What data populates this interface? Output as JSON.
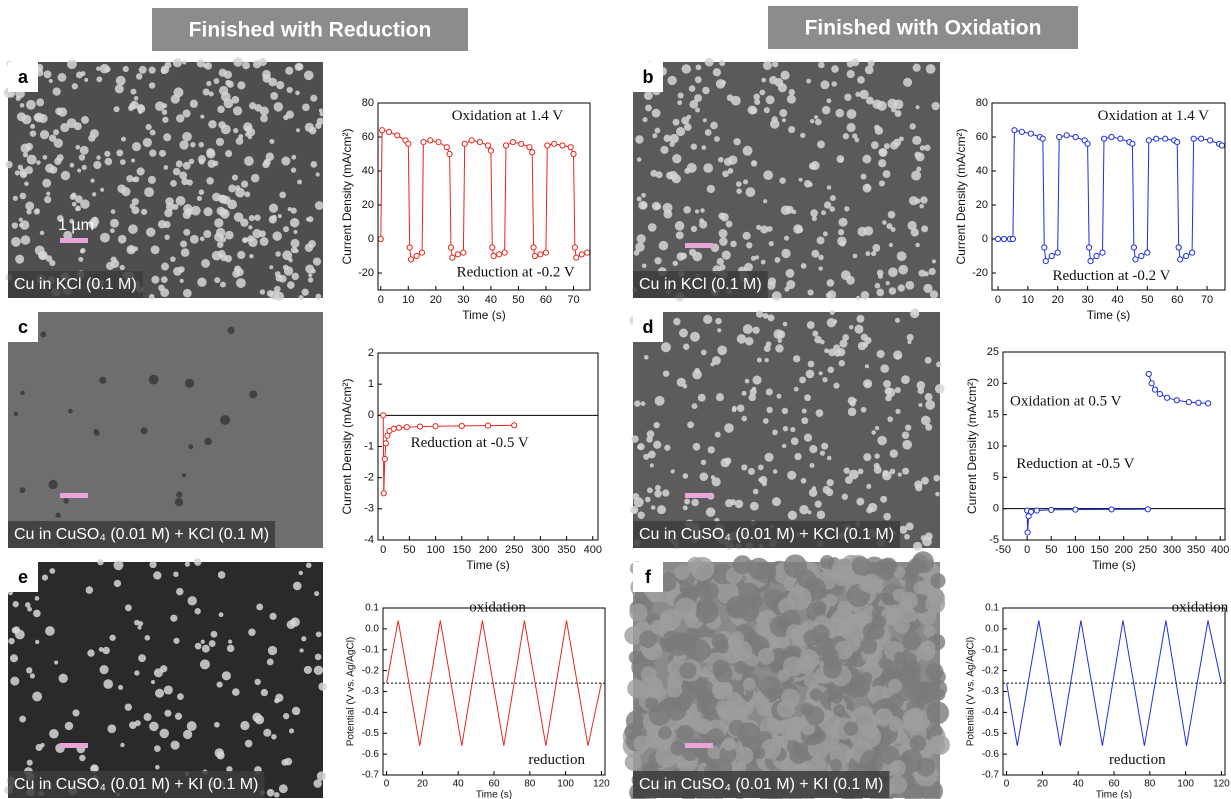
{
  "headers": [
    "Finished with Reduction",
    "Finished with Oxidation"
  ],
  "panels": [
    {
      "label": "a",
      "caption": "Cu in KCl (0.1 M)",
      "scale_bar": "1 µm"
    },
    {
      "label": "b",
      "caption": "Cu in KCl (0.1 M)"
    },
    {
      "label": "c",
      "caption": "Cu in CuSO₄ (0.01 M) + KCl (0.1 M)"
    },
    {
      "label": "d",
      "caption": "Cu in CuSO₄ (0.01 M) + KCl (0.1 M)"
    },
    {
      "label": "e",
      "caption": "Cu in CuSO₄ (0.01 M) + KI (0.1 M)"
    },
    {
      "label": "f",
      "caption": "Cu in CuSO₄ (0.01 M) + KI (0.1 M)"
    }
  ],
  "chart_data": [
    {
      "type": "line",
      "xlabel": "Time (s)",
      "ylabel": "Current Density (mA/cm²)",
      "color": "#e8281e",
      "markers": true,
      "annotations": [
        "Oxidation at 1.4 V",
        "Reduction at -0.2 V"
      ],
      "x": [
        0,
        0.5,
        3,
        6,
        9,
        10,
        10.5,
        11,
        13,
        15,
        15.5,
        18,
        21,
        24,
        25,
        25.5,
        26,
        28,
        30,
        30.5,
        33,
        36,
        39,
        40,
        40.5,
        41,
        43,
        45,
        45.5,
        48,
        51,
        54,
        55,
        55.5,
        56,
        58,
        60,
        60.5,
        63,
        66,
        69,
        70,
        70.5,
        71,
        73,
        75
      ],
      "values": [
        0,
        64,
        63,
        61,
        58,
        56,
        -5,
        -12,
        -10,
        -8,
        57,
        58,
        57,
        54,
        50,
        -5,
        -11,
        -9,
        -8,
        56,
        58,
        57,
        55,
        52,
        -5,
        -10,
        -9,
        -8,
        55,
        57,
        56,
        54,
        51,
        -5,
        -10,
        -9,
        -8,
        55,
        56,
        55,
        54,
        50,
        -5,
        -11,
        -9,
        -8
      ],
      "xlim": [
        -1,
        76
      ],
      "ylim": [
        -30,
        80
      ],
      "xticks": [
        0,
        10,
        20,
        30,
        40,
        50,
        60,
        70
      ],
      "yticks": [
        -20,
        0,
        20,
        40,
        60,
        80
      ]
    },
    {
      "type": "line",
      "xlabel": "Time (s)",
      "ylabel": "Current Density (mA/cm²)",
      "color": "#1f2fe0",
      "markers": true,
      "annotations": [
        "Oxidation at 1.4 V",
        "Reduction at -0.2 V"
      ],
      "x": [
        0,
        2,
        4,
        5,
        5.5,
        8,
        11,
        14,
        15,
        15.5,
        16,
        18,
        20,
        20.5,
        23,
        26,
        29,
        30,
        30.5,
        31,
        33,
        35,
        35.5,
        38,
        41,
        44,
        45,
        45.5,
        46,
        48,
        50,
        50.5,
        53,
        56,
        59,
        60,
        60.5,
        61,
        63,
        65,
        65.5,
        68,
        71,
        74,
        75
      ],
      "values": [
        0,
        0,
        0,
        0,
        64,
        63,
        62,
        60,
        59,
        -5,
        -13,
        -10,
        -8,
        60,
        61,
        60,
        58,
        56,
        -5,
        -13,
        -10,
        -8,
        59,
        60,
        59,
        57,
        56,
        -5,
        -12,
        -10,
        -8,
        58,
        59,
        59,
        58,
        57,
        -5,
        -12,
        -10,
        -8,
        59,
        59,
        58,
        56,
        55
      ],
      "xlim": [
        -2,
        76
      ],
      "ylim": [
        -30,
        80
      ],
      "xticks": [
        0,
        10,
        20,
        30,
        40,
        50,
        60,
        70
      ],
      "yticks": [
        -20,
        0,
        20,
        40,
        60,
        80
      ]
    },
    {
      "type": "line",
      "xlabel": "Time (s)",
      "ylabel": "Current Density (mA/cm²)",
      "color": "#e8281e",
      "markers": true,
      "annotations": [
        "Reduction at -0.5 V"
      ],
      "hline": 0,
      "x": [
        0,
        1,
        3,
        5,
        8,
        12,
        20,
        30,
        45,
        70,
        100,
        150,
        200,
        250
      ],
      "values": [
        0,
        -2.5,
        -1.4,
        -0.9,
        -0.65,
        -0.5,
        -0.43,
        -0.4,
        -0.38,
        -0.36,
        -0.35,
        -0.34,
        -0.33,
        -0.32
      ],
      "xlim": [
        -10,
        410
      ],
      "ylim": [
        -4,
        2
      ],
      "xticks": [
        0,
        50,
        100,
        150,
        200,
        250,
        300,
        350,
        400
      ],
      "yticks": [
        -4,
        -3,
        -2,
        -1,
        0,
        1,
        2
      ]
    },
    {
      "type": "line",
      "xlabel": "Time (s)",
      "ylabel": "Current Density (mA/cm²)",
      "color": "#1f2fe0",
      "markers": true,
      "annotations": [
        "Oxidation at 0.5 V",
        "Reduction at -0.5 V"
      ],
      "hline": 0,
      "x": [
        0,
        1,
        3,
        8,
        20,
        50,
        100,
        175,
        250,
        251,
        252,
        258,
        265,
        275,
        290,
        310,
        335,
        355,
        375
      ],
      "values": [
        -0.3,
        -3.8,
        -1.2,
        -0.5,
        -0.3,
        -0.2,
        -0.15,
        -0.12,
        -0.1,
        null,
        21.5,
        20,
        19,
        18.3,
        17.7,
        17.3,
        17,
        16.9,
        16.8
      ],
      "xlim": [
        -50,
        410
      ],
      "ylim": [
        -5,
        25
      ],
      "xticks": [
        -50,
        0,
        50,
        100,
        150,
        200,
        250,
        300,
        350,
        400
      ],
      "yticks": [
        -5,
        0,
        5,
        10,
        15,
        20,
        25
      ]
    },
    {
      "type": "line",
      "xlabel": "Time (s)",
      "ylabel": "Potential (V vs. Ag/AgCl)",
      "color": "#e8281e",
      "markers": false,
      "annotations": [
        "oxidation",
        "reduction"
      ],
      "hline": -0.26,
      "x": [
        0,
        6.5,
        18.5,
        30,
        42,
        53.5,
        65.5,
        77,
        89,
        100.5,
        112.5,
        120
      ],
      "values": [
        -0.26,
        0.04,
        -0.56,
        0.04,
        -0.56,
        0.04,
        -0.56,
        0.04,
        -0.56,
        0.04,
        -0.56,
        -0.26
      ],
      "xlim": [
        -2,
        122
      ],
      "ylim": [
        -0.7,
        0.1
      ],
      "xticks": [
        0,
        20,
        40,
        60,
        80,
        100,
        120
      ],
      "yticks": [
        0.1,
        {
          "value": 0,
          "label": "0.0"
        },
        -0.1,
        -0.2,
        -0.3,
        -0.4,
        -0.5,
        -0.6,
        -0.7
      ]
    },
    {
      "type": "line",
      "xlabel": "Time (s)",
      "ylabel": "Potential (V vs. Ag/AgCl)",
      "color": "#1f2fe0",
      "markers": false,
      "annotations": [
        "oxidation",
        "reduction"
      ],
      "hline": -0.26,
      "x": [
        0,
        6,
        18,
        30,
        41.5,
        53.5,
        65,
        77,
        89,
        100.5,
        112.5,
        120
      ],
      "values": [
        -0.26,
        -0.56,
        0.04,
        -0.56,
        0.04,
        -0.56,
        0.04,
        -0.56,
        0.04,
        -0.56,
        0.04,
        -0.26
      ],
      "xlim": [
        -2,
        122
      ],
      "ylim": [
        -0.7,
        0.1
      ],
      "xticks": [
        0,
        20,
        40,
        60,
        80,
        100,
        120
      ],
      "yticks": [
        0.1,
        {
          "value": 0,
          "label": "0.0"
        },
        -0.1,
        -0.2,
        -0.3,
        -0.4,
        -0.5,
        -0.6,
        -0.7
      ]
    }
  ]
}
